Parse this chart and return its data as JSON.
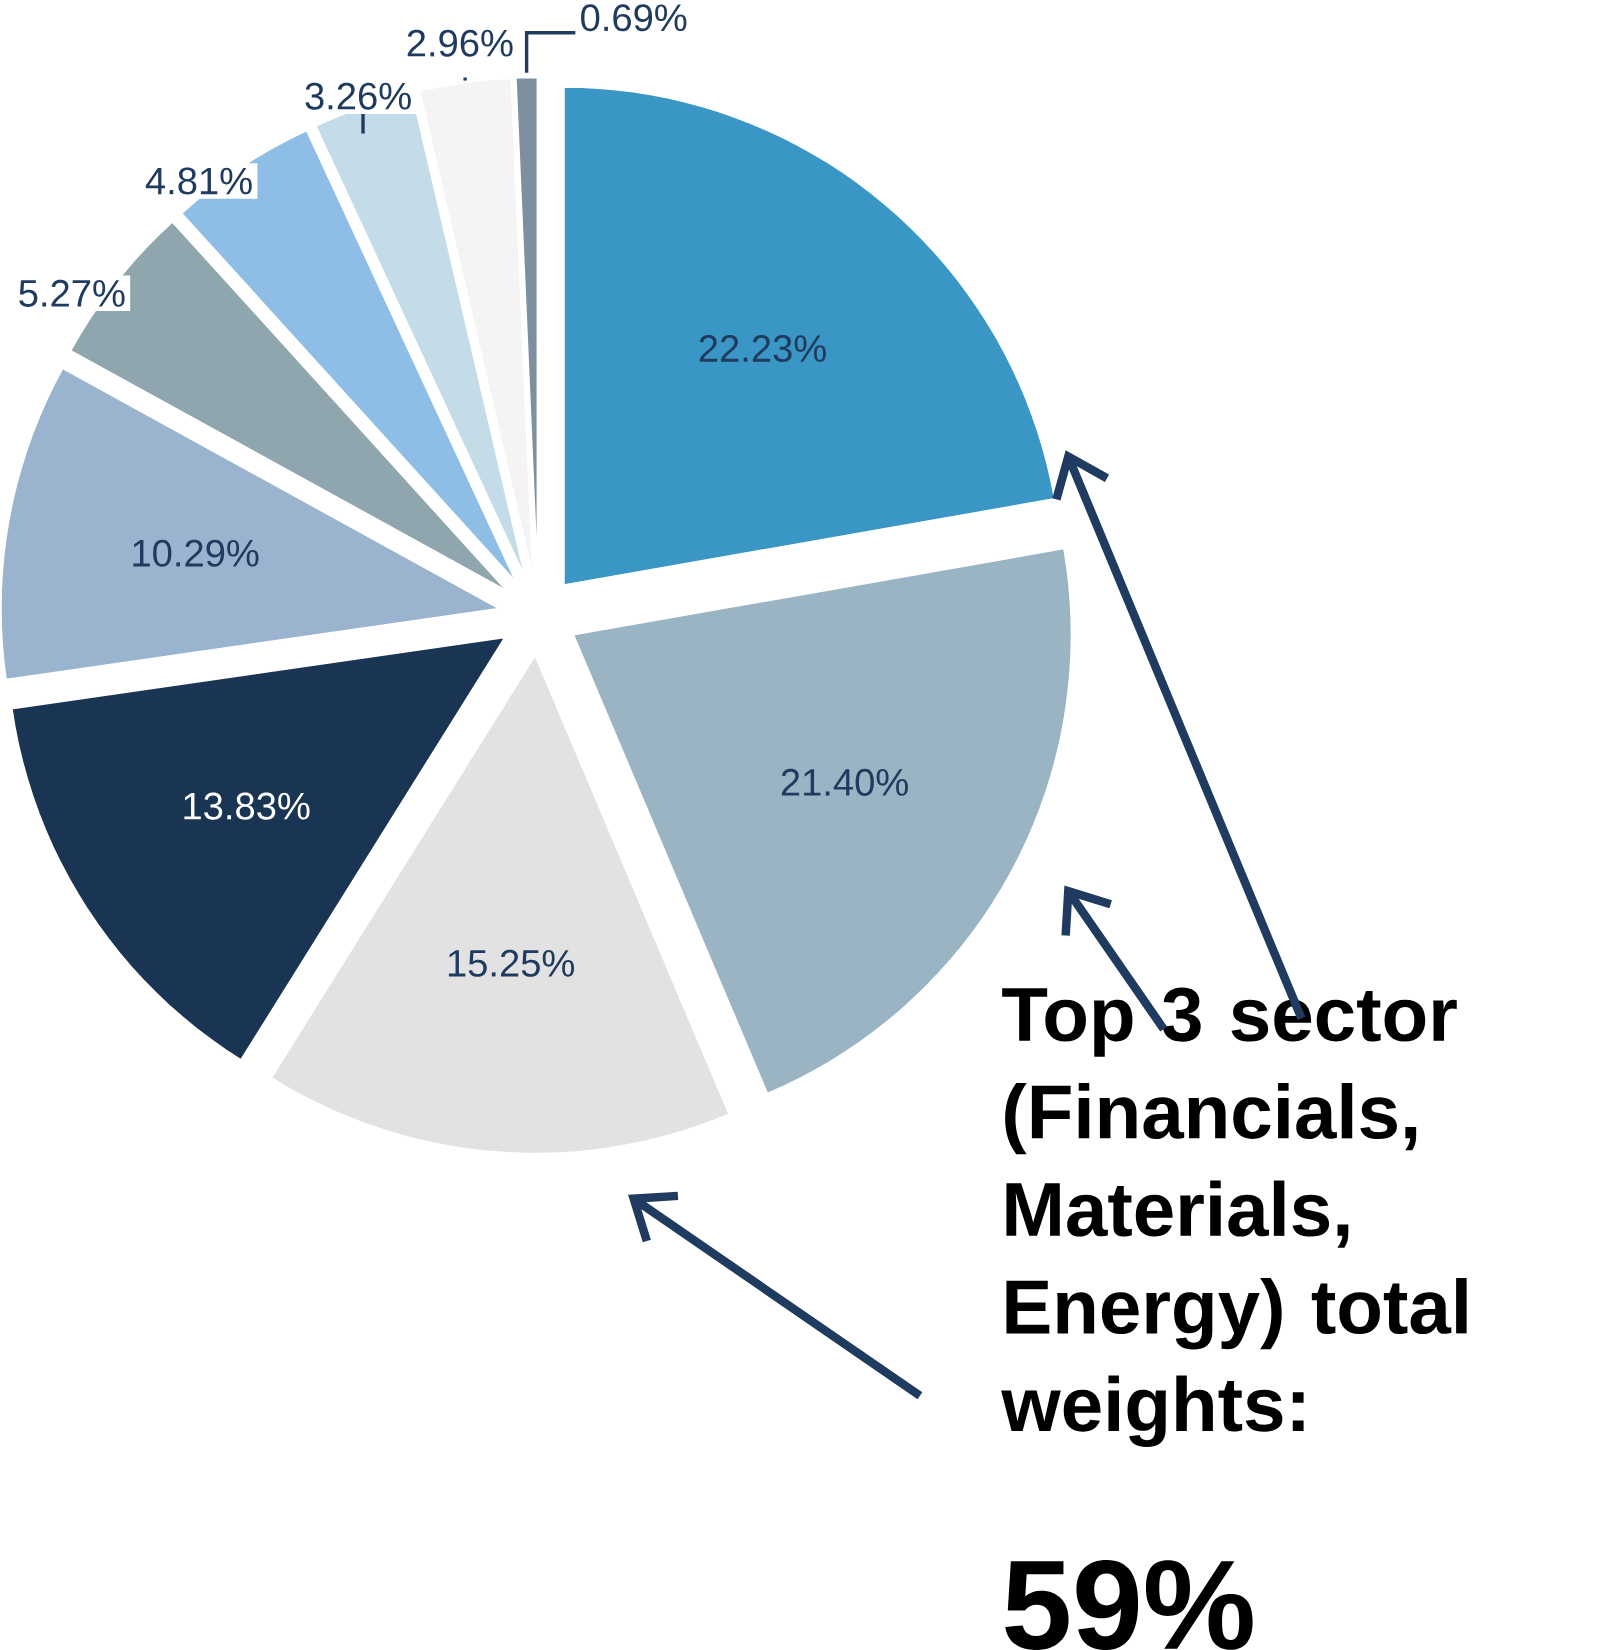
{
  "chart_data": {
    "type": "pie",
    "categories": [
      null,
      null,
      null,
      null,
      null,
      null,
      null,
      null,
      null,
      null
    ],
    "values": [
      22.23,
      21.4,
      15.25,
      13.83,
      10.29,
      5.27,
      4.81,
      3.26,
      2.96,
      0.69
    ],
    "colors": [
      "#3a96c4",
      "#9ab4c4",
      "#e2e2e2",
      "#1a3553",
      "#9ab4d0",
      "#8fa6ae",
      "#8ebde6",
      "#c4dce8",
      "#f4f4f4",
      "#7e8fa0"
    ],
    "value_labels": [
      "22.23%",
      "21.40%",
      "15.25%",
      "13.83%",
      "10.29%",
      "5.27%",
      "4.81%",
      "3.26%",
      "2.96%",
      "0.69%"
    ],
    "annotations": [
      "Top 3 sector (Financials, Materials, Energy)  total weights:",
      "59%"
    ]
  }
}
